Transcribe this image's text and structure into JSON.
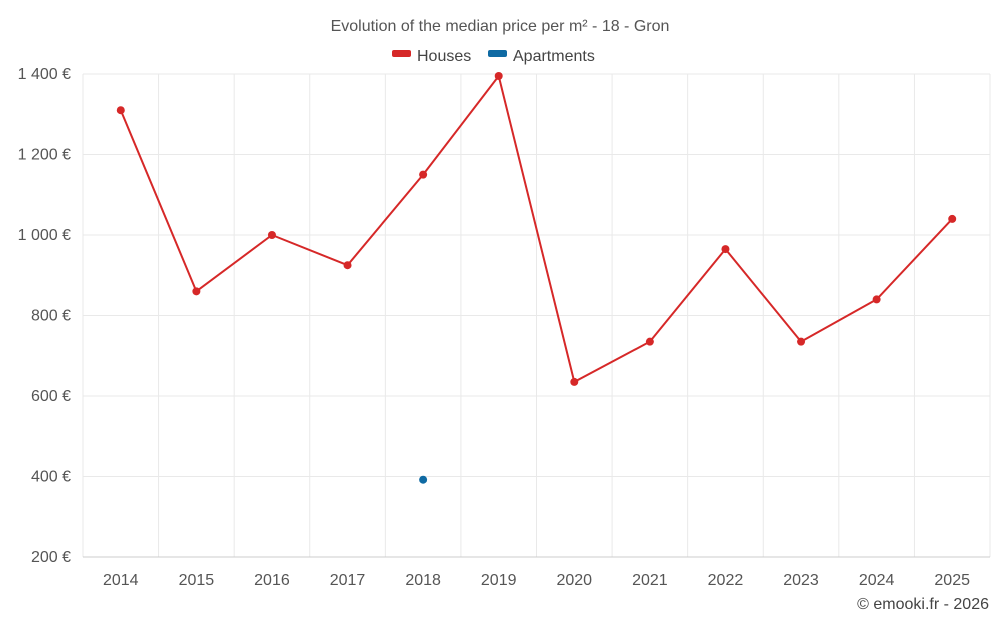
{
  "chart_data": {
    "type": "line",
    "title": "Evolution of the median price per m² - 18 - Gron",
    "categories": [
      "2014",
      "2015",
      "2016",
      "2017",
      "2018",
      "2019",
      "2020",
      "2021",
      "2022",
      "2023",
      "2024",
      "2025"
    ],
    "ylim": [
      200,
      1400
    ],
    "yticks": [
      200,
      400,
      600,
      800,
      1000,
      1200,
      1400
    ],
    "ytick_labels": [
      "200 €",
      "400 €",
      "600 €",
      "800 €",
      "1 000 €",
      "1 200 €",
      "1 400 €"
    ],
    "grid": true,
    "legend_position": "top-center",
    "series": [
      {
        "name": "Houses",
        "color": "#d62828",
        "values": [
          1310,
          860,
          1000,
          925,
          1150,
          1395,
          635,
          735,
          965,
          735,
          840,
          1040
        ]
      },
      {
        "name": "Apartments",
        "color": "#0f6aa3",
        "values": [
          null,
          null,
          null,
          null,
          392,
          null,
          null,
          null,
          null,
          null,
          null,
          null
        ]
      }
    ],
    "credit": "© emooki.fr - 2026"
  }
}
